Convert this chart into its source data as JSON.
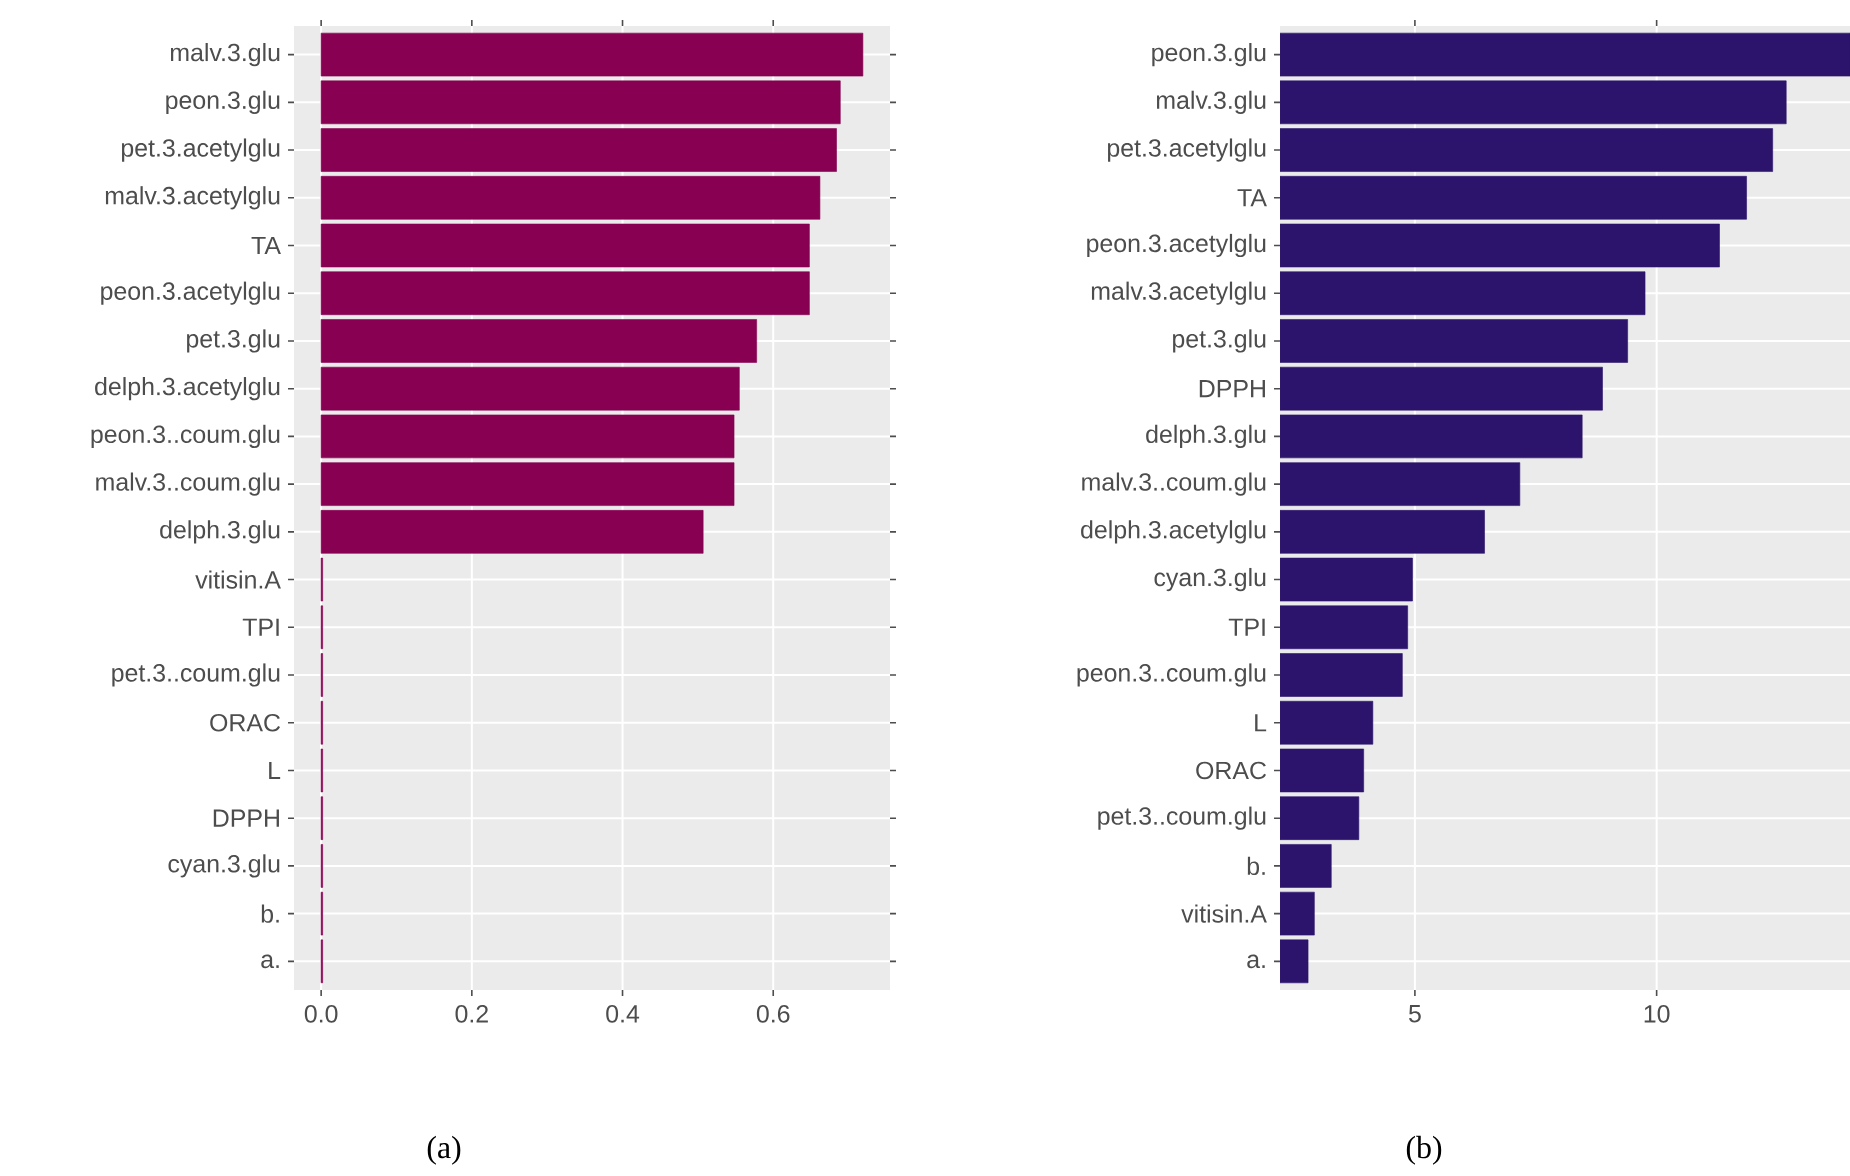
{
  "chart_data": [
    {
      "type": "bar",
      "orientation": "horizontal",
      "grid": true,
      "color": "#870052",
      "categories": [
        "malv.3.glu",
        "peon.3.glu",
        "pet.3.acetylglu",
        "malv.3.acetylglu",
        "TA",
        "peon.3.acetylglu",
        "pet.3.glu",
        "delph.3.acetylglu",
        "peon.3..coum.glu",
        "malv.3..coum.glu",
        "delph.3.glu",
        "vitisin.A",
        "TPI",
        "pet.3..coum.glu",
        "ORAC",
        "L",
        "DPPH",
        "cyan.3.glu",
        "b.",
        "a."
      ],
      "values": [
        0.719,
        0.689,
        0.684,
        0.662,
        0.648,
        0.648,
        0.578,
        0.555,
        0.548,
        0.548,
        0.507,
        0.002,
        0.002,
        0.002,
        0.002,
        0.002,
        0.002,
        0.002,
        0.002,
        0.002
      ],
      "xlim": [
        -0.036,
        0.755
      ],
      "xticks": [
        {
          "value": 0,
          "label": "0.0"
        },
        {
          "value": 0.2,
          "label": "0.2"
        },
        {
          "value": 0.4,
          "label": "0.4"
        },
        {
          "value": 0.6,
          "label": "0.6"
        }
      ],
      "annotations": [
        "(a)"
      ]
    },
    {
      "type": "bar",
      "orientation": "horizontal",
      "grid": true,
      "color": "#2c146c",
      "categories": [
        "peon.3.glu",
        "malv.3.glu",
        "pet.3.acetylglu",
        "TA",
        "peon.3.acetylglu",
        "malv.3.acetylglu",
        "pet.3.glu",
        "DPPH",
        "delph.3.glu",
        "malv.3..coum.glu",
        "delph.3.acetylglu",
        "cyan.3.glu",
        "TPI",
        "peon.3..coum.glu",
        "L",
        "ORAC",
        "pet.3..coum.glu",
        "b.",
        "vitisin.A",
        "a."
      ],
      "values": [
        14.0,
        12.68,
        12.4,
        11.86,
        11.3,
        9.76,
        9.4,
        8.88,
        8.46,
        7.17,
        6.44,
        4.95,
        4.85,
        4.74,
        4.13,
        3.94,
        3.84,
        3.27,
        2.92,
        2.79
      ],
      "xlim": [
        2.21,
        14.0
      ],
      "xticks": [
        5,
        10
      ],
      "annotations": [
        "(b)"
      ]
    }
  ]
}
